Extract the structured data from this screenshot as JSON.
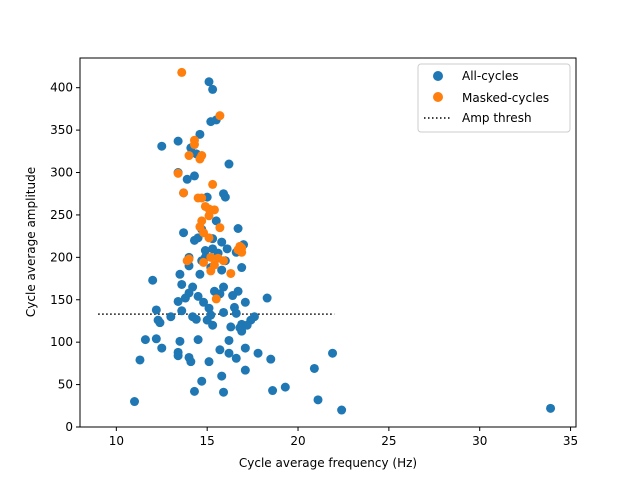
{
  "chart_data": {
    "type": "scatter",
    "title": "",
    "xlabel": "Cycle average frequency (Hz)",
    "ylabel": "Cycle average amplitude",
    "xlim": [
      8,
      35.3
    ],
    "ylim": [
      0,
      435
    ],
    "xticks": [
      10,
      15,
      20,
      25,
      30,
      35
    ],
    "yticks": [
      0,
      50,
      100,
      150,
      200,
      250,
      300,
      350,
      400
    ],
    "grid": false,
    "legend_position": "top-right",
    "legend": [
      {
        "label": "All-cycles",
        "marker": "circle",
        "color": "#1f77b4"
      },
      {
        "label": "Masked-cycles",
        "marker": "circle",
        "color": "#ff7f0e"
      },
      {
        "label": "Amp thresh",
        "marker": "dotted-line",
        "color": "#000000"
      }
    ],
    "threshold": {
      "name": "Amp thresh",
      "y": 133,
      "x_start": 9.0,
      "x_end": 22.0,
      "style": "dotted",
      "color": "#000000"
    },
    "series": [
      {
        "name": "All-cycles",
        "color": "#1f77b4",
        "points": [
          [
            15.1,
            407
          ],
          [
            15.3,
            398
          ],
          [
            15.2,
            360
          ],
          [
            15.5,
            362
          ],
          [
            14.6,
            345
          ],
          [
            13.4,
            337
          ],
          [
            14.1,
            329
          ],
          [
            12.5,
            331
          ],
          [
            14.4,
            322
          ],
          [
            16.2,
            310
          ],
          [
            13.4,
            300
          ],
          [
            14.3,
            296
          ],
          [
            13.9,
            292
          ],
          [
            15.9,
            275
          ],
          [
            16.0,
            271
          ],
          [
            15.0,
            271
          ],
          [
            13.7,
            276
          ],
          [
            15.5,
            243
          ],
          [
            16.7,
            234
          ],
          [
            14.7,
            233
          ],
          [
            13.7,
            229
          ],
          [
            14.5,
            223
          ],
          [
            15.3,
            222
          ],
          [
            14.3,
            220
          ],
          [
            15.8,
            218
          ],
          [
            17.0,
            215
          ],
          [
            16.1,
            210
          ],
          [
            15.3,
            210
          ],
          [
            14.9,
            208
          ],
          [
            16.6,
            206
          ],
          [
            15.6,
            205
          ],
          [
            14.9,
            200
          ],
          [
            14.0,
            200
          ],
          [
            14.7,
            196
          ],
          [
            16.0,
            196
          ],
          [
            14.0,
            190
          ],
          [
            16.9,
            188
          ],
          [
            15.2,
            188
          ],
          [
            15.8,
            185
          ],
          [
            14.6,
            180
          ],
          [
            13.5,
            180
          ],
          [
            12.0,
            173
          ],
          [
            13.6,
            168
          ],
          [
            14.2,
            165
          ],
          [
            15.9,
            165
          ],
          [
            15.4,
            160
          ],
          [
            16.7,
            160
          ],
          [
            15.7,
            157
          ],
          [
            14.0,
            158
          ],
          [
            18.3,
            152
          ],
          [
            14.5,
            154
          ],
          [
            16.4,
            155
          ],
          [
            13.8,
            152
          ],
          [
            13.4,
            148
          ],
          [
            17.1,
            147
          ],
          [
            14.8,
            147
          ],
          [
            16.5,
            141
          ],
          [
            12.2,
            138
          ],
          [
            15.1,
            140
          ],
          [
            13.6,
            137
          ],
          [
            15.9,
            135
          ],
          [
            16.6,
            134
          ],
          [
            13.0,
            130
          ],
          [
            14.2,
            130
          ],
          [
            15.2,
            132
          ],
          [
            17.6,
            130
          ],
          [
            12.3,
            126
          ],
          [
            15.0,
            126
          ],
          [
            14.4,
            127
          ],
          [
            17.4,
            126
          ],
          [
            12.4,
            123
          ],
          [
            15.3,
            120
          ],
          [
            16.9,
            121
          ],
          [
            16.3,
            118
          ],
          [
            17.2,
            120
          ],
          [
            16.8,
            117
          ],
          [
            16.9,
            113
          ],
          [
            11.6,
            103
          ],
          [
            12.2,
            104
          ],
          [
            13.5,
            101
          ],
          [
            14.5,
            103
          ],
          [
            16.2,
            102
          ],
          [
            12.5,
            93
          ],
          [
            13.4,
            88
          ],
          [
            15.7,
            91
          ],
          [
            17.1,
            93
          ],
          [
            13.4,
            84
          ],
          [
            14.0,
            82
          ],
          [
            16.2,
            87
          ],
          [
            17.8,
            87
          ],
          [
            21.9,
            87
          ],
          [
            11.3,
            79
          ],
          [
            14.1,
            77
          ],
          [
            15.1,
            77
          ],
          [
            16.6,
            81
          ],
          [
            18.5,
            80
          ],
          [
            17.1,
            67
          ],
          [
            20.9,
            69
          ],
          [
            15.8,
            60
          ],
          [
            14.7,
            54
          ],
          [
            19.3,
            47
          ],
          [
            14.3,
            42
          ],
          [
            15.9,
            41
          ],
          [
            18.6,
            43
          ],
          [
            11.0,
            30
          ],
          [
            21.1,
            32
          ],
          [
            22.4,
            20
          ],
          [
            33.9,
            22
          ]
        ]
      },
      {
        "name": "Masked-cycles",
        "color": "#ff7f0e",
        "points": [
          [
            13.6,
            418
          ],
          [
            15.7,
            367
          ],
          [
            14.3,
            333
          ],
          [
            14.3,
            338
          ],
          [
            14.0,
            320
          ],
          [
            14.7,
            320
          ],
          [
            14.6,
            316
          ],
          [
            13.4,
            299
          ],
          [
            15.3,
            286
          ],
          [
            14.5,
            270
          ],
          [
            14.7,
            270
          ],
          [
            13.7,
            276
          ],
          [
            15.1,
            257
          ],
          [
            15.4,
            256
          ],
          [
            14.9,
            260
          ],
          [
            15.1,
            249
          ],
          [
            14.7,
            243
          ],
          [
            14.6,
            236
          ],
          [
            15.7,
            235
          ],
          [
            14.8,
            229
          ],
          [
            15.1,
            223
          ],
          [
            16.8,
            213
          ],
          [
            16.7,
            209
          ],
          [
            16.9,
            211
          ],
          [
            16.9,
            206
          ],
          [
            15.2,
            200
          ],
          [
            15.6,
            199
          ],
          [
            14.0,
            198
          ],
          [
            15.9,
            196
          ],
          [
            13.9,
            196
          ],
          [
            14.8,
            194
          ],
          [
            15.2,
            184
          ],
          [
            15.4,
            191
          ],
          [
            16.3,
            181
          ],
          [
            15.5,
            151
          ]
        ]
      }
    ]
  }
}
